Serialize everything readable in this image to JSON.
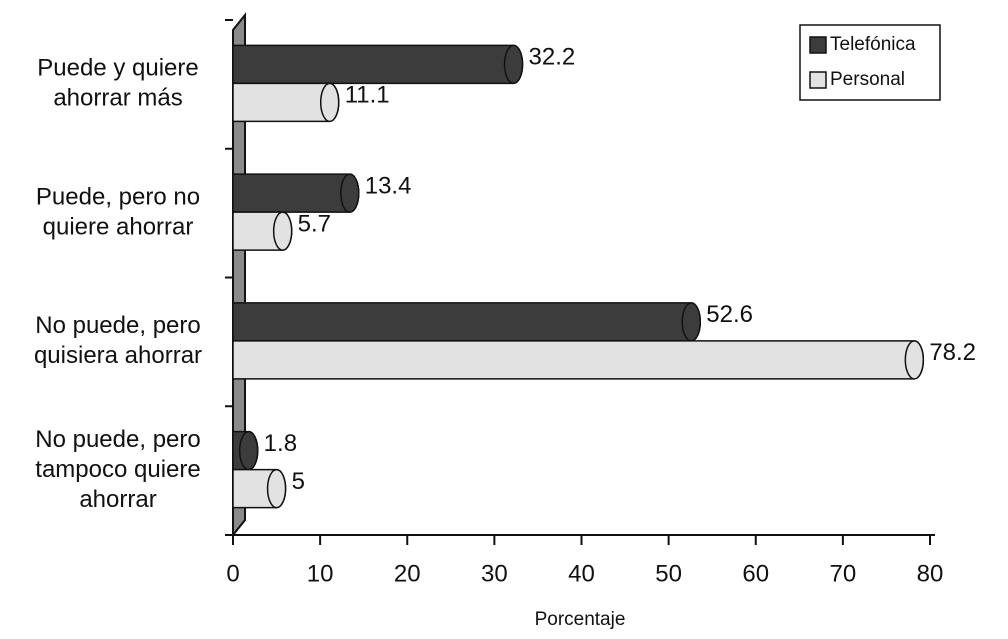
{
  "chart_data": {
    "type": "bar",
    "orientation": "horizontal",
    "categories": [
      [
        "Puede y quiere",
        "ahorrar más"
      ],
      [
        "Puede, pero no",
        "quiere ahorrar"
      ],
      [
        "No puede, pero",
        "quisiera ahorrar"
      ],
      [
        "No puede, pero",
        "tampoco quiere",
        "ahorrar"
      ]
    ],
    "series": [
      {
        "name": "Telefónica",
        "color": "#3c3c3c",
        "values": [
          32.2,
          13.4,
          52.6,
          1.8
        ]
      },
      {
        "name": "Personal",
        "color": "#e2e2e2",
        "values": [
          11.1,
          5.7,
          78.2,
          5
        ]
      }
    ],
    "xlim": [
      0,
      80
    ],
    "xticks": [
      0,
      10,
      20,
      30,
      40,
      50,
      60,
      70,
      80
    ],
    "x_label": "Porcentaje",
    "legend": "upper right"
  }
}
